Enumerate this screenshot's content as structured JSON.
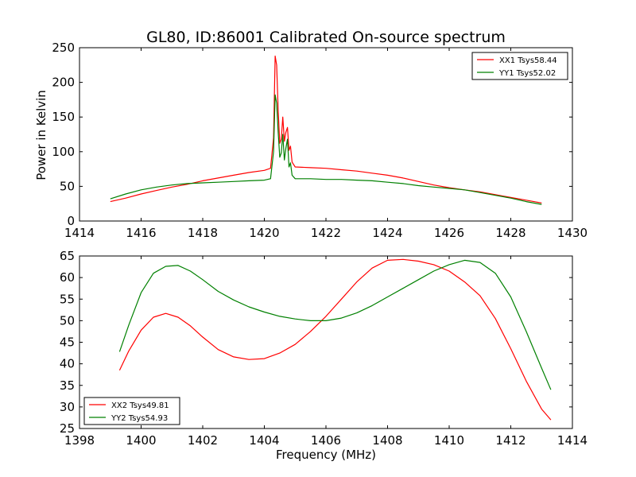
{
  "figure": {
    "title": "GL80, ID:86001 Calibrated On-source spectrum",
    "xlabel": "Frequency (MHz)",
    "ylabel": "Power in Kelvin"
  },
  "chart_data": [
    {
      "type": "line",
      "xlim": [
        1414,
        1430
      ],
      "ylim": [
        0,
        250
      ],
      "xticks": [
        1414,
        1416,
        1418,
        1420,
        1422,
        1424,
        1426,
        1428,
        1430
      ],
      "yticks": [
        0,
        50,
        100,
        150,
        200,
        250
      ],
      "legend_position": "top-right",
      "series": [
        {
          "name": "XX1 Tsys58.44",
          "color": "#ff0000",
          "x": [
            1415.0,
            1415.5,
            1416.0,
            1416.5,
            1417.0,
            1417.5,
            1418.0,
            1418.5,
            1419.0,
            1419.5,
            1420.0,
            1420.2,
            1420.3,
            1420.35,
            1420.4,
            1420.45,
            1420.5,
            1420.55,
            1420.6,
            1420.65,
            1420.7,
            1420.75,
            1420.8,
            1420.85,
            1420.9,
            1421.0,
            1421.5,
            1422.0,
            1422.5,
            1423.0,
            1423.5,
            1424.0,
            1424.5,
            1425.0,
            1425.5,
            1426.0,
            1426.5,
            1427.0,
            1427.5,
            1428.0,
            1428.5,
            1429.0
          ],
          "y": [
            28,
            33,
            39,
            44,
            49,
            53,
            58,
            62,
            66,
            70,
            73,
            76,
            120,
            238,
            225,
            160,
            112,
            118,
            150,
            115,
            128,
            135,
            102,
            108,
            85,
            78,
            77,
            76,
            74,
            72,
            69,
            66,
            62,
            57,
            52,
            48,
            45,
            42,
            38,
            34,
            30,
            26
          ]
        },
        {
          "name": "YY1 Tsys52.02",
          "color": "#008000",
          "x": [
            1415.0,
            1415.5,
            1416.0,
            1416.5,
            1417.0,
            1417.5,
            1418.0,
            1418.5,
            1419.0,
            1419.5,
            1420.0,
            1420.2,
            1420.3,
            1420.35,
            1420.4,
            1420.45,
            1420.5,
            1420.55,
            1420.6,
            1420.65,
            1420.7,
            1420.75,
            1420.8,
            1420.85,
            1420.9,
            1421.0,
            1421.5,
            1422.0,
            1422.5,
            1423.0,
            1423.5,
            1424.0,
            1424.5,
            1425.0,
            1425.5,
            1426.0,
            1426.5,
            1427.0,
            1427.5,
            1428.0,
            1428.5,
            1429.0
          ],
          "y": [
            32,
            39,
            45,
            49,
            52,
            54,
            55,
            56,
            57,
            58,
            59,
            61,
            100,
            182,
            170,
            128,
            92,
            98,
            125,
            88,
            105,
            118,
            78,
            84,
            66,
            61,
            61,
            60,
            60,
            59,
            58,
            56,
            54,
            51,
            49,
            47,
            45,
            41,
            37,
            33,
            28,
            24
          ]
        }
      ]
    },
    {
      "type": "line",
      "xlim": [
        1398,
        1414
      ],
      "ylim": [
        25,
        65
      ],
      "xticks": [
        1398,
        1400,
        1402,
        1404,
        1406,
        1408,
        1410,
        1412,
        1414
      ],
      "yticks": [
        25,
        30,
        35,
        40,
        45,
        50,
        55,
        60,
        65
      ],
      "legend_position": "bottom-left",
      "series": [
        {
          "name": "XX2 Tsys49.81",
          "color": "#ff0000",
          "x": [
            1399.3,
            1399.6,
            1400.0,
            1400.4,
            1400.8,
            1401.2,
            1401.6,
            1402.0,
            1402.5,
            1403.0,
            1403.5,
            1404.0,
            1404.5,
            1405.0,
            1405.5,
            1406.0,
            1406.5,
            1407.0,
            1407.5,
            1408.0,
            1408.5,
            1409.0,
            1409.5,
            1410.0,
            1410.5,
            1411.0,
            1411.5,
            1412.0,
            1412.5,
            1413.0,
            1413.3
          ],
          "y": [
            38.5,
            43.0,
            47.8,
            50.8,
            51.7,
            50.8,
            48.8,
            46.2,
            43.3,
            41.6,
            41.0,
            41.2,
            42.5,
            44.5,
            47.5,
            51.0,
            55.0,
            59.0,
            62.2,
            64.0,
            64.2,
            63.8,
            63.0,
            61.5,
            59.0,
            55.8,
            50.5,
            43.5,
            36.0,
            29.5,
            27.0
          ]
        },
        {
          "name": "YY2 Tsys54.93",
          "color": "#008000",
          "x": [
            1399.3,
            1399.6,
            1400.0,
            1400.4,
            1400.8,
            1401.2,
            1401.6,
            1402.0,
            1402.5,
            1403.0,
            1403.5,
            1404.0,
            1404.5,
            1405.0,
            1405.5,
            1406.0,
            1406.5,
            1407.0,
            1407.5,
            1408.0,
            1408.5,
            1409.0,
            1409.5,
            1410.0,
            1410.5,
            1411.0,
            1411.5,
            1412.0,
            1412.5,
            1413.0,
            1413.3
          ],
          "y": [
            42.8,
            49.0,
            56.5,
            61.0,
            62.6,
            62.8,
            61.5,
            59.5,
            56.8,
            54.8,
            53.2,
            52.0,
            51.0,
            50.4,
            50.0,
            50.0,
            50.6,
            51.8,
            53.5,
            55.5,
            57.5,
            59.5,
            61.5,
            63.0,
            64.0,
            63.5,
            61.0,
            55.5,
            47.5,
            39.0,
            34.0
          ]
        }
      ]
    }
  ]
}
